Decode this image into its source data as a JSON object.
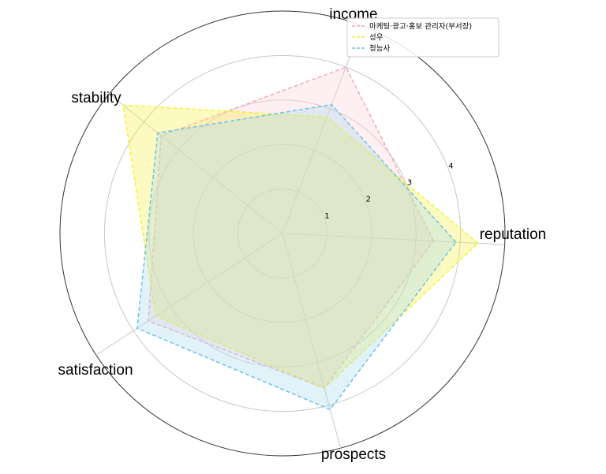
{
  "chart_data": {
    "type": "radar",
    "axes": [
      "reputation",
      "income",
      "stability",
      "satisfaction",
      "prospects"
    ],
    "rlim": [
      0,
      5
    ],
    "r_ticks": [
      "1",
      "2",
      "3",
      "4"
    ],
    "grid": true,
    "legend_position": "top-right",
    "series": [
      {
        "name": "마케팅·광고·홍보 관리자(부서장)",
        "values": [
          3.4,
          4.0,
          3.5,
          3.6,
          3.6
        ],
        "color": "#f4a9b8",
        "fill": "#fbd0da"
      },
      {
        "name": "성우",
        "values": [
          4.4,
          2.8,
          4.6,
          3.4,
          3.6
        ],
        "color": "#f2f23a",
        "fill": "#f7f24a"
      },
      {
        "name": "청능사",
        "values": [
          3.9,
          3.1,
          3.6,
          3.9,
          4.1
        ],
        "color": "#6ec3ea",
        "fill": "#a9d9ef"
      }
    ]
  }
}
